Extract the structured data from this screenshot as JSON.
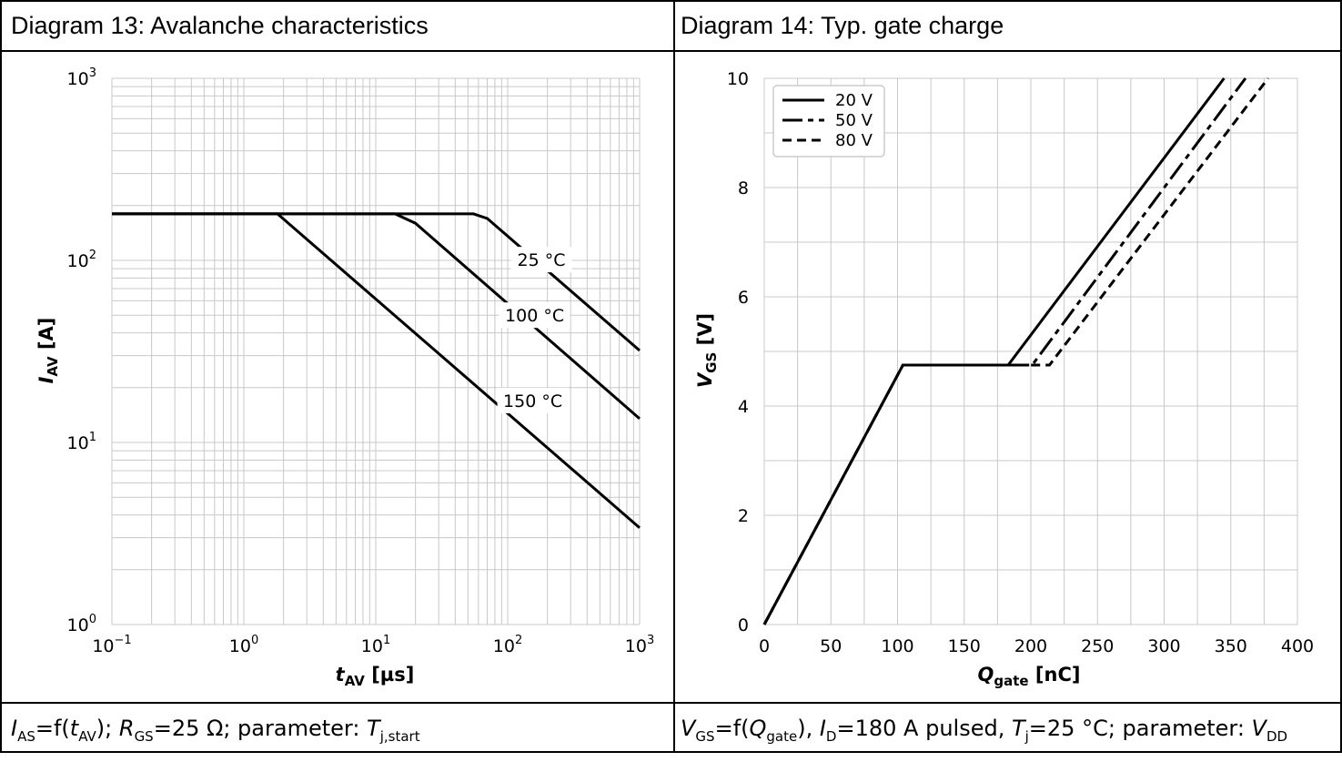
{
  "panels": [
    {
      "title": "Diagram 13: Avalanche characteristics",
      "caption": {
        "i_sym": "I",
        "i_sub": "AS",
        "eq1": "=f(",
        "t_sym": "t",
        "t_sub": "AV",
        "mid": "); ",
        "r_sym": "R",
        "r_sub": "GS",
        "r_val": "=25 Ω; parameter:  ",
        "tj_sym": "T",
        "tj_sub": "j,start"
      }
    },
    {
      "title": "Diagram 14: Typ. gate charge",
      "caption": {
        "v_sym": "V",
        "v_sub": "GS",
        "eq1": "=f(",
        "q_sym": "Q",
        "q_sub": "gate",
        "mid": "), ",
        "id_sym": "I",
        "id_sub": "D",
        "id_val": "=180 A pulsed, ",
        "tj_sym": "T",
        "tj_sub": "j",
        "tj_val": "=25 °C; parameter: ",
        "vdd_sym": "V",
        "vdd_sub": "DD"
      }
    }
  ],
  "chart_data": [
    {
      "type": "line",
      "log_x": true,
      "log_y": true,
      "xlim": [
        0.1,
        1000
      ],
      "ylim": [
        1,
        1000
      ],
      "xlabel_sym": "t",
      "xlabel_sub": "AV",
      "xlabel_unit": " [µs]",
      "ylabel_sym": "I",
      "ylabel_sub": "AV",
      "ylabel_unit": " [A]",
      "x_ticks": [
        {
          "base": "10",
          "exp": "−1",
          "v": 0.1
        },
        {
          "base": "10",
          "exp": "0",
          "v": 1
        },
        {
          "base": "10",
          "exp": "1",
          "v": 10
        },
        {
          "base": "10",
          "exp": "2",
          "v": 100
        },
        {
          "base": "10",
          "exp": "3",
          "v": 1000
        }
      ],
      "y_ticks": [
        {
          "base": "10",
          "exp": "0",
          "v": 1
        },
        {
          "base": "10",
          "exp": "1",
          "v": 10
        },
        {
          "base": "10",
          "exp": "2",
          "v": 100
        },
        {
          "base": "10",
          "exp": "3",
          "v": 1000
        }
      ],
      "grid": true,
      "series": [
        {
          "name": "25 °C",
          "points": [
            [
              0.1,
              180
            ],
            [
              55,
              180
            ],
            [
              70,
              170
            ],
            [
              1000,
              32
            ]
          ],
          "label_at": [
            180,
            101
          ]
        },
        {
          "name": "100 °C",
          "points": [
            [
              0.1,
              180
            ],
            [
              14,
              180
            ],
            [
              20,
              160
            ],
            [
              1000,
              13.5
            ]
          ],
          "label_at": [
            160,
            50
          ]
        },
        {
          "name": "150 °C",
          "points": [
            [
              0.1,
              180
            ],
            [
              1.8,
              180
            ],
            [
              1000,
              3.4
            ]
          ],
          "label_at": [
            155,
            17
          ]
        }
      ]
    },
    {
      "type": "line",
      "xlim": [
        0,
        400
      ],
      "ylim": [
        0,
        10
      ],
      "xlabel_sym": "Q",
      "xlabel_sub": "gate",
      "xlabel_unit": " [nC]",
      "ylabel_sym": "V",
      "ylabel_sub": "GS",
      "ylabel_unit": " [V]",
      "x_ticks": [
        0,
        50,
        100,
        150,
        200,
        250,
        300,
        350,
        400
      ],
      "y_ticks": [
        0,
        2,
        4,
        6,
        8,
        10
      ],
      "grid": true,
      "legend": "top-left",
      "series": [
        {
          "name": "20 V",
          "dash": "solid",
          "points": [
            [
              0,
              0
            ],
            [
              104,
              4.75
            ],
            [
              183,
              4.75
            ],
            [
              345,
              10
            ]
          ]
        },
        {
          "name": "50 V",
          "dash": "dashdot",
          "points": [
            [
              0,
              0
            ],
            [
              104,
              4.75
            ],
            [
              201,
              4.75
            ],
            [
              361,
              10
            ]
          ]
        },
        {
          "name": "80 V",
          "dash": "dashed",
          "points": [
            [
              0,
              0
            ],
            [
              104,
              4.75
            ],
            [
              214,
              4.75
            ],
            [
              378,
              10
            ]
          ]
        }
      ]
    }
  ]
}
